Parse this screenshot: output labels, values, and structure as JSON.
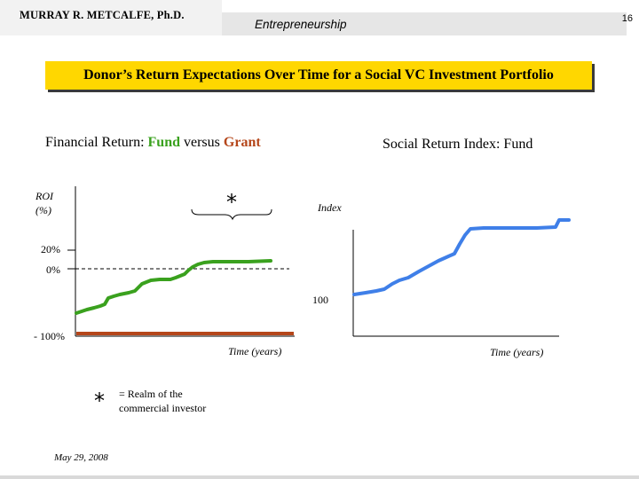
{
  "header": {
    "author": "MURRAY R. METCALFE, Ph.D.",
    "subject": "Entrepreneurship",
    "page_number": "16"
  },
  "title": "Donor’s Return Expectations Over Time for a Social VC Investment Portfolio",
  "left_chart": {
    "heading_prefix": "Financial Return: ",
    "heading_fund": "Fund",
    "heading_mid": " versus ",
    "heading_grant": "Grant",
    "y_label_line1": "ROI",
    "y_label_line2": "(%)",
    "tick_20": "20%",
    "tick_0": "0%",
    "tick_neg100": "- 100%",
    "x_label": "Time (years)",
    "realm_marker": "*",
    "fund_color": "#3aa11e",
    "grant_color": "#b5461a"
  },
  "right_chart": {
    "heading": "Social Return Index: Fund",
    "y_label": "Index",
    "tick_100": "100",
    "x_label": "Time (years)",
    "fund_color": "#3f7fe8"
  },
  "legend": {
    "marker": "*",
    "text_line1": "= Realm of the",
    "text_line2": "commercial investor"
  },
  "footer": {
    "date": "May 29, 2008"
  }
}
